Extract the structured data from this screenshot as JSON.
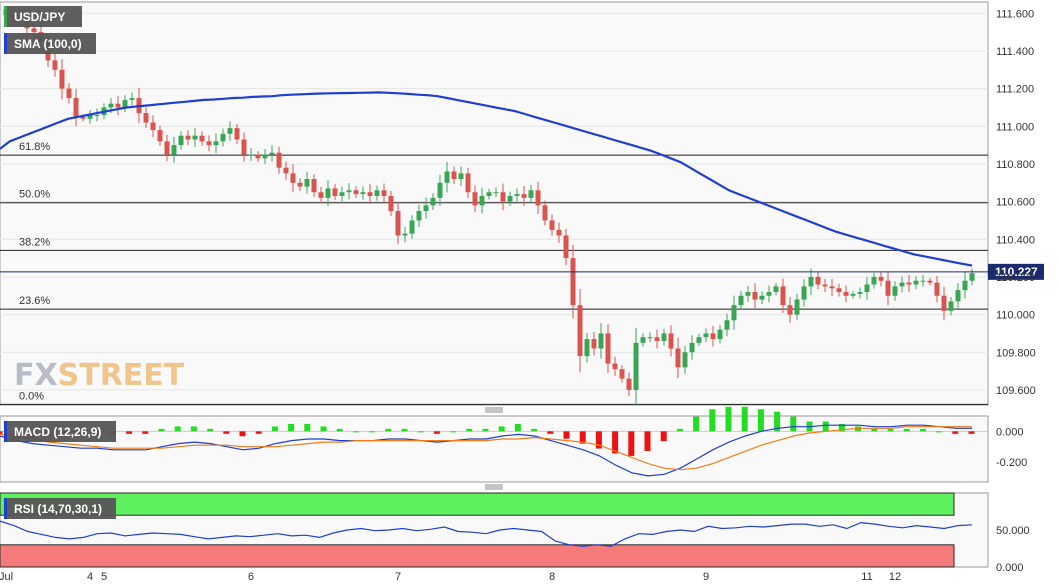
{
  "instrument": "USD/JPY",
  "indicators": {
    "sma_label": "SMA (100,0)",
    "macd_label": "MACD (12,26,9)",
    "rsi_label": "RSI (14,70,30,1)"
  },
  "watermark": {
    "part1": "FX",
    "part2": "STREET"
  },
  "colors": {
    "up": "#3aa655",
    "down": "#d9534f",
    "sma": "#1f3fcf",
    "macd_line": "#1f3fcf",
    "signal_line": "#f07d1a",
    "hist_up": "#22dd22",
    "hist_down": "#ee1111",
    "rsi_overbought": "#5ff05f",
    "rsi_oversold": "#f57a7a",
    "tag_bg": "#555555",
    "price_tag_bg": "#1a2a6c"
  },
  "chart_data": {
    "type": "candlestick",
    "price_axis": {
      "ticks": [
        "111.600",
        "111.400",
        "111.200",
        "111.000",
        "110.800",
        "110.600",
        "110.400",
        "110.200",
        "110.000",
        "109.800",
        "109.600"
      ],
      "ylim": [
        109.52,
        111.66
      ]
    },
    "time_axis": {
      "ticks": [
        {
          "label": "Jul",
          "bar": 0
        },
        {
          "label": "4",
          "bar": 12
        },
        {
          "label": "5",
          "bar": 14
        },
        {
          "label": "6",
          "bar": 35
        },
        {
          "label": "7",
          "bar": 56
        },
        {
          "label": "8",
          "bar": 78
        },
        {
          "label": "9",
          "bar": 100
        },
        {
          "label": "11",
          "bar": 123
        },
        {
          "label": "12",
          "bar": 127
        }
      ]
    },
    "current_price": "110.227",
    "fib_levels": [
      {
        "label": "61.8%",
        "value": 110.847
      },
      {
        "label": "50.0%",
        "value": 110.594
      },
      {
        "label": "38.2%",
        "value": 110.341
      },
      {
        "label": "23.6%",
        "value": 110.029
      },
      {
        "label": "0.0%",
        "value": 109.523
      }
    ],
    "close": [
      111.59,
      111.58,
      111.57,
      111.52,
      111.5,
      111.45,
      111.35,
      111.3,
      111.2,
      111.15,
      111.05,
      111.04,
      111.06,
      111.06,
      111.1,
      111.12,
      111.1,
      111.14,
      111.15,
      111.07,
      111.02,
      110.98,
      110.92,
      110.85,
      110.9,
      110.95,
      110.93,
      110.95,
      110.92,
      110.9,
      110.92,
      110.96,
      110.99,
      110.93,
      110.85,
      110.85,
      110.83,
      110.85,
      110.86,
      110.78,
      110.75,
      110.7,
      110.68,
      110.72,
      110.65,
      110.62,
      110.67,
      110.63,
      110.65,
      110.66,
      110.64,
      110.65,
      110.63,
      110.66,
      110.63,
      110.55,
      110.42,
      110.43,
      110.5,
      110.55,
      110.58,
      110.62,
      110.7,
      110.76,
      110.72,
      110.75,
      110.65,
      110.58,
      110.63,
      110.65,
      110.65,
      110.6,
      110.63,
      110.64,
      110.62,
      110.66,
      110.58,
      110.5,
      110.45,
      110.42,
      110.3,
      110.05,
      109.78,
      109.87,
      109.82,
      109.9,
      109.74,
      109.71,
      109.66,
      109.6,
      109.85,
      109.88,
      109.88,
      109.86,
      109.9,
      109.82,
      109.72,
      109.8,
      109.85,
      109.88,
      109.9,
      109.87,
      109.92,
      109.97,
      110.05,
      110.1,
      110.12,
      110.08,
      110.1,
      110.12,
      110.15,
      110.05,
      110.0,
      110.08,
      110.15,
      110.2,
      110.16,
      110.15,
      110.14,
      110.12,
      110.1,
      110.11,
      110.12,
      110.16,
      110.2,
      110.18,
      110.1,
      110.15,
      110.17,
      110.16,
      110.18,
      110.18,
      110.17,
      110.1,
      110.02,
      110.07,
      110.13,
      110.18,
      110.22
    ],
    "sma_100": [
      110.88,
      110.92,
      110.94,
      110.96,
      110.98,
      111.0,
      111.02,
      111.04,
      111.05,
      111.06,
      111.07,
      111.08,
      111.09,
      111.1,
      111.105,
      111.11,
      111.115,
      111.12,
      111.125,
      111.13,
      111.135,
      111.14,
      111.142,
      111.146,
      111.15,
      111.152,
      111.156,
      111.158,
      111.16,
      111.165,
      111.168,
      111.17,
      111.172,
      111.174,
      111.175,
      111.176,
      111.177,
      111.178,
      111.179,
      111.18,
      111.178,
      111.175,
      111.172,
      111.168,
      111.165,
      111.16,
      111.15,
      111.14,
      111.13,
      111.12,
      111.11,
      111.1,
      111.09,
      111.08,
      111.065,
      111.05,
      111.035,
      111.02,
      111.005,
      110.99,
      110.975,
      110.96,
      110.945,
      110.93,
      110.915,
      110.9,
      110.885,
      110.87,
      110.85,
      110.83,
      110.81,
      110.78,
      110.75,
      110.72,
      110.69,
      110.66,
      110.64,
      110.62,
      110.6,
      110.58,
      110.56,
      110.54,
      110.52,
      110.5,
      110.48,
      110.46,
      110.44,
      110.425,
      110.41,
      110.395,
      110.38,
      110.365,
      110.35,
      110.335,
      110.32,
      110.31,
      110.3,
      110.29,
      110.28,
      110.27,
      110.26
    ],
    "macd": [
      -0.03,
      -0.06,
      -0.08,
      -0.09,
      -0.1,
      -0.11,
      -0.11,
      -0.12,
      -0.12,
      -0.12,
      -0.1,
      -0.08,
      -0.07,
      -0.08,
      -0.1,
      -0.12,
      -0.11,
      -0.08,
      -0.06,
      -0.05,
      -0.05,
      -0.06,
      -0.06,
      -0.06,
      -0.05,
      -0.05,
      -0.06,
      -0.07,
      -0.06,
      -0.05,
      -0.05,
      -0.03,
      -0.02,
      -0.03,
      -0.06,
      -0.09,
      -0.12,
      -0.16,
      -0.22,
      -0.27,
      -0.29,
      -0.28,
      -0.24,
      -0.18,
      -0.12,
      -0.07,
      -0.03,
      0.0,
      0.02,
      0.03,
      0.03,
      0.04,
      0.04,
      0.04,
      0.03,
      0.03,
      0.04,
      0.04,
      0.03,
      0.02,
      0.02
    ],
    "signal": [
      -0.02,
      -0.03,
      -0.05,
      -0.07,
      -0.08,
      -0.09,
      -0.1,
      -0.11,
      -0.11,
      -0.11,
      -0.11,
      -0.1,
      -0.09,
      -0.09,
      -0.09,
      -0.1,
      -0.1,
      -0.1,
      -0.09,
      -0.08,
      -0.07,
      -0.07,
      -0.06,
      -0.06,
      -0.06,
      -0.06,
      -0.06,
      -0.06,
      -0.06,
      -0.06,
      -0.06,
      -0.05,
      -0.05,
      -0.04,
      -0.05,
      -0.06,
      -0.07,
      -0.09,
      -0.13,
      -0.17,
      -0.21,
      -0.24,
      -0.25,
      -0.24,
      -0.21,
      -0.17,
      -0.13,
      -0.09,
      -0.06,
      -0.03,
      -0.01,
      0.0,
      0.01,
      0.02,
      0.02,
      0.02,
      0.03,
      0.03,
      0.03,
      0.03,
      0.03
    ],
    "macd_axis": {
      "ticks": [
        "0.000",
        "-0.200"
      ],
      "ylim": [
        -0.33,
        0.1
      ]
    },
    "rsi": [
      62,
      56,
      48,
      44,
      40,
      38,
      40,
      45,
      46,
      42,
      44,
      46,
      45,
      44,
      41,
      38,
      40,
      42,
      41,
      43,
      45,
      42,
      43,
      40,
      46,
      50,
      52,
      49,
      50,
      52,
      49,
      51,
      54,
      48,
      47,
      45,
      50,
      52,
      50,
      48,
      35,
      30,
      28,
      30,
      28,
      38,
      45,
      44,
      48,
      50,
      48,
      55,
      52,
      53,
      55,
      54,
      56,
      58,
      58,
      55,
      57,
      52,
      60,
      58,
      55,
      53,
      56,
      54,
      52,
      56,
      57
    ],
    "rsi_axis": {
      "ticks": [
        "50.000",
        "0.000"
      ],
      "ylim": [
        0,
        100
      ],
      "overbought": 70,
      "oversold": 30
    }
  }
}
